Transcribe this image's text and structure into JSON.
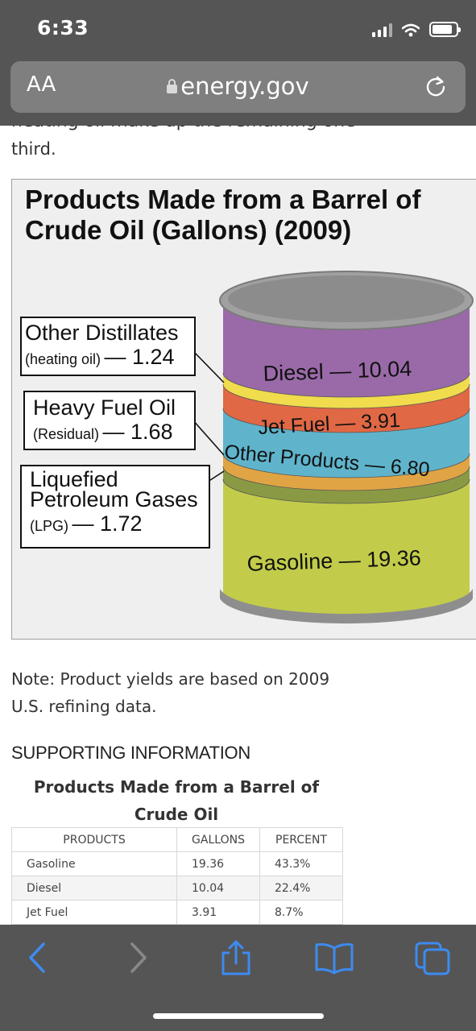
{
  "status_bar": {
    "time": "6:33"
  },
  "address_bar": {
    "reader_label": "AA",
    "url": "energy.gov"
  },
  "page": {
    "cut_off_text": "heating oil make up the remaining one",
    "intro_tail": "third.",
    "note": "Note: Product yields are based on 2009 U.S. refining data.",
    "supporting_heading": "SUPPORTING INFORMATION",
    "table_title": "Products Made from a Barrel of Crude Oil"
  },
  "infographic": {
    "title": "Products Made from a Barrel of Crude Oil (Gallons) (2009)",
    "callouts": {
      "other_distillates": {
        "name": "Other Distillates",
        "sub": "(heating oil)",
        "value": "— 1.24"
      },
      "heavy_fuel_oil": {
        "name": "Heavy Fuel Oil",
        "sub": "(Residual)",
        "value": "— 1.68"
      },
      "lpg": {
        "name": "Liquefied Petroleum Gases",
        "sub": "(LPG)",
        "value": "— 1.72"
      }
    },
    "bands": {
      "diesel": "Diesel — 10.04",
      "jet_fuel": "Jet Fuel — 3.91",
      "other_products": "Other Products — 6.80",
      "gasoline": "Gasoline — 19.36"
    },
    "colors": {
      "diesel": "#9a6aa8",
      "distillates": "#f0dc4c",
      "jet_fuel": "#e06845",
      "other_products": "#5fb4cc",
      "heavy_fuel": "#e0a445",
      "lpg": "#8a9a44",
      "gasoline": "#c2cc4a",
      "rim": "#9a9a9a"
    }
  },
  "table": {
    "headers": [
      "PRODUCTS",
      "GALLONS",
      "PERCENT"
    ],
    "rows": [
      [
        "Gasoline",
        "19.36",
        "43.3%"
      ],
      [
        "Diesel",
        "10.04",
        "22.4%"
      ],
      [
        "Jet Fuel",
        "3.91",
        "8.7%"
      ]
    ]
  },
  "toolbar": {
    "icons": [
      "back-icon",
      "forward-icon",
      "share-icon",
      "bookmarks-icon",
      "tabs-icon"
    ]
  }
}
